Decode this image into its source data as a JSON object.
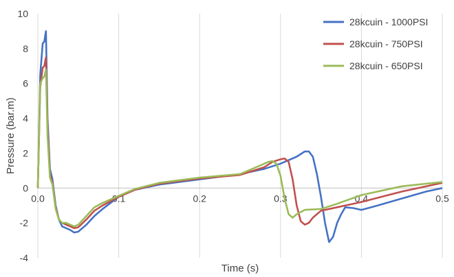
{
  "chart_data": {
    "type": "line",
    "title": "",
    "xlabel": "Time (s)",
    "ylabel": "Pressure (bar.m)",
    "xlim": [
      0,
      0.5
    ],
    "ylim": [
      -4,
      10
    ],
    "x_ticks": [
      0.0,
      0.1,
      0.2,
      0.3,
      0.4,
      0.5
    ],
    "x_tick_labels": [
      "0.0",
      "0.1",
      "0.2",
      "0.3",
      "0.4",
      "0.5"
    ],
    "y_ticks": [
      -4,
      -2,
      0,
      2,
      4,
      6,
      8,
      10
    ],
    "y_tick_labels": [
      "-4",
      "-2",
      "0",
      "2",
      "4",
      "6",
      "8",
      "10"
    ],
    "grid": "vertical",
    "legend_position": "top-right",
    "series": [
      {
        "name": "28kcuin - 1000PSI",
        "color": "#4472c4",
        "x": [
          0,
          0.003,
          0.006,
          0.008,
          0.01,
          0.012,
          0.015,
          0.018,
          0.022,
          0.026,
          0.03,
          0.035,
          0.04,
          0.045,
          0.05,
          0.06,
          0.07,
          0.08,
          0.1,
          0.12,
          0.15,
          0.2,
          0.25,
          0.28,
          0.3,
          0.32,
          0.33,
          0.335,
          0.34,
          0.345,
          0.35,
          0.355,
          0.36,
          0.365,
          0.37,
          0.375,
          0.38,
          0.39,
          0.4,
          0.42,
          0.45,
          0.48,
          0.5
        ],
        "y": [
          0,
          6.5,
          8.3,
          8.4,
          9.0,
          4.0,
          1.1,
          0.5,
          -1.0,
          -1.8,
          -2.2,
          -2.3,
          -2.4,
          -2.55,
          -2.5,
          -2.1,
          -1.6,
          -1.2,
          -0.5,
          -0.1,
          0.2,
          0.5,
          0.8,
          1.1,
          1.4,
          1.8,
          2.1,
          2.1,
          1.8,
          0.8,
          -0.5,
          -2.0,
          -3.1,
          -2.8,
          -2.0,
          -1.5,
          -1.1,
          -1.15,
          -1.25,
          -1.0,
          -0.6,
          -0.2,
          0.0
        ]
      },
      {
        "name": "28kcuin - 750PSI",
        "color": "#c0504d",
        "x": [
          0,
          0.003,
          0.006,
          0.008,
          0.01,
          0.012,
          0.015,
          0.018,
          0.022,
          0.026,
          0.03,
          0.035,
          0.04,
          0.045,
          0.05,
          0.06,
          0.07,
          0.08,
          0.1,
          0.12,
          0.15,
          0.2,
          0.25,
          0.28,
          0.29,
          0.3,
          0.305,
          0.31,
          0.315,
          0.32,
          0.325,
          0.33,
          0.335,
          0.34,
          0.35,
          0.36,
          0.37,
          0.4,
          0.45,
          0.5
        ],
        "y": [
          0,
          5.8,
          6.9,
          7.0,
          7.5,
          3.5,
          0.8,
          0.3,
          -1.1,
          -1.8,
          -2.0,
          -2.1,
          -2.2,
          -2.3,
          -2.25,
          -1.8,
          -1.3,
          -1.0,
          -0.5,
          -0.1,
          0.25,
          0.55,
          0.75,
          1.2,
          1.5,
          1.65,
          1.7,
          1.5,
          0.5,
          -1.0,
          -1.9,
          -2.1,
          -2.0,
          -1.7,
          -1.3,
          -1.2,
          -1.1,
          -0.8,
          -0.2,
          0.3
        ]
      },
      {
        "name": "28kcuin - 650PSI",
        "color": "#9bbb59",
        "x": [
          0,
          0.003,
          0.006,
          0.008,
          0.01,
          0.012,
          0.015,
          0.018,
          0.022,
          0.026,
          0.03,
          0.035,
          0.04,
          0.045,
          0.05,
          0.06,
          0.07,
          0.08,
          0.1,
          0.12,
          0.15,
          0.2,
          0.25,
          0.27,
          0.285,
          0.29,
          0.295,
          0.3,
          0.305,
          0.31,
          0.315,
          0.32,
          0.33,
          0.35,
          0.37,
          0.4,
          0.45,
          0.5
        ],
        "y": [
          0,
          6.0,
          6.3,
          6.4,
          6.8,
          3.0,
          0.6,
          0.2,
          -1.2,
          -1.8,
          -2.0,
          -2.0,
          -2.1,
          -2.2,
          -2.1,
          -1.6,
          -1.1,
          -0.85,
          -0.45,
          -0.05,
          0.3,
          0.6,
          0.8,
          1.2,
          1.5,
          1.55,
          1.4,
          0.7,
          -0.6,
          -1.5,
          -1.7,
          -1.5,
          -1.25,
          -1.2,
          -0.9,
          -0.4,
          0.1,
          0.35
        ]
      }
    ]
  }
}
